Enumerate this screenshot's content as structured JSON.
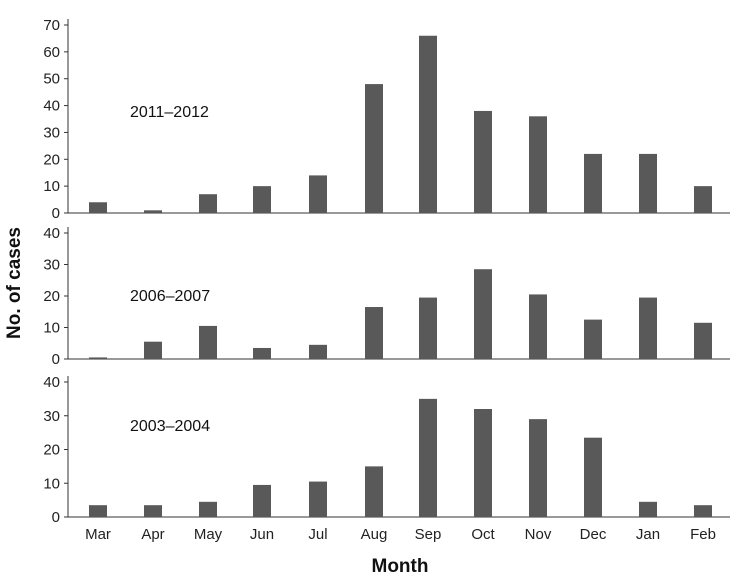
{
  "figure": {
    "xlabel": "Month",
    "ylabel": "No. of cases"
  },
  "chart_data": [
    {
      "type": "bar",
      "annotation": "2011–2012",
      "categories": [
        "Mar",
        "Apr",
        "May",
        "Jun",
        "Jul",
        "Aug",
        "Sep",
        "Oct",
        "Nov",
        "Dec",
        "Jan",
        "Feb"
      ],
      "values": [
        4,
        1,
        7,
        10,
        14,
        48,
        66,
        38,
        36,
        22,
        22,
        10
      ],
      "ylim": [
        0,
        70
      ],
      "yticks": [
        0,
        10,
        20,
        30,
        40,
        50,
        60,
        70
      ],
      "bar_color": "#595959"
    },
    {
      "type": "bar",
      "annotation": "2006–2007",
      "categories": [
        "Mar",
        "Apr",
        "May",
        "Jun",
        "Jul",
        "Aug",
        "Sep",
        "Oct",
        "Nov",
        "Dec",
        "Jan",
        "Feb"
      ],
      "values": [
        0.5,
        5.5,
        10.5,
        3.5,
        4.5,
        16.5,
        19.5,
        28.5,
        20.5,
        12.5,
        19.5,
        11.5
      ],
      "ylim": [
        0,
        40
      ],
      "yticks": [
        0,
        10,
        20,
        30,
        40
      ],
      "bar_color": "#595959"
    },
    {
      "type": "bar",
      "annotation": "2003–2004",
      "categories": [
        "Mar",
        "Apr",
        "May",
        "Jun",
        "Jul",
        "Aug",
        "Sep",
        "Oct",
        "Nov",
        "Dec",
        "Jan",
        "Feb"
      ],
      "values": [
        3.5,
        3.5,
        4.5,
        9.5,
        10.5,
        15,
        35,
        32,
        29,
        23.5,
        4.5,
        3.5
      ],
      "ylim": [
        0,
        40
      ],
      "yticks": [
        0,
        10,
        20,
        30,
        40
      ],
      "bar_color": "#595959"
    }
  ]
}
